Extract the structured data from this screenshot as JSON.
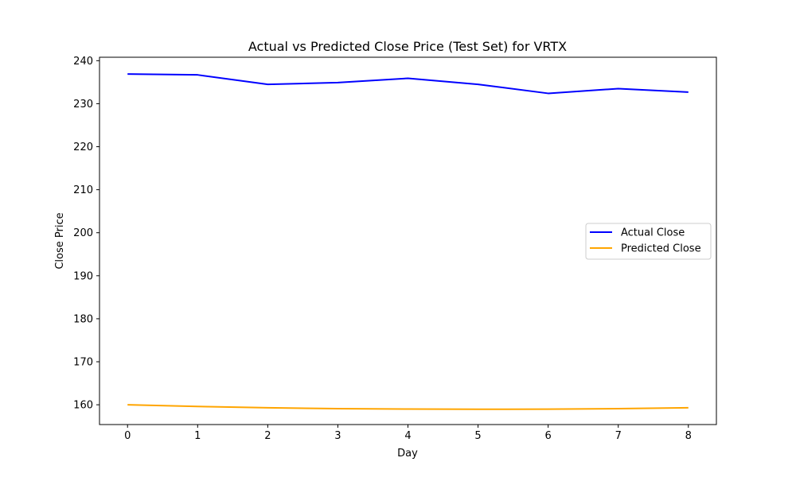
{
  "chart_data": {
    "type": "line",
    "title": "Actual vs Predicted Close Price (Test Set) for VRTX",
    "xlabel": "Day",
    "ylabel": "Close Price",
    "x": [
      0,
      1,
      2,
      3,
      4,
      5,
      6,
      7,
      8
    ],
    "xticks": [
      "0",
      "1",
      "2",
      "3",
      "4",
      "5",
      "6",
      "7",
      "8"
    ],
    "xlim": [
      -0.4,
      8.4
    ],
    "yticks": [
      "160",
      "170",
      "180",
      "190",
      "200",
      "210",
      "220",
      "230",
      "240"
    ],
    "ylim": [
      155.4,
      240.8
    ],
    "grid": false,
    "legend_position": "center-right",
    "series": [
      {
        "name": "Actual Close",
        "color": "#0000ff",
        "values": [
          236.9,
          236.7,
          234.5,
          234.9,
          235.9,
          234.5,
          232.4,
          233.5,
          232.7
        ]
      },
      {
        "name": "Predicted Close",
        "color": "#ffa500",
        "values": [
          160.0,
          159.6,
          159.3,
          159.1,
          159.0,
          158.95,
          158.98,
          159.1,
          159.3
        ]
      }
    ]
  }
}
